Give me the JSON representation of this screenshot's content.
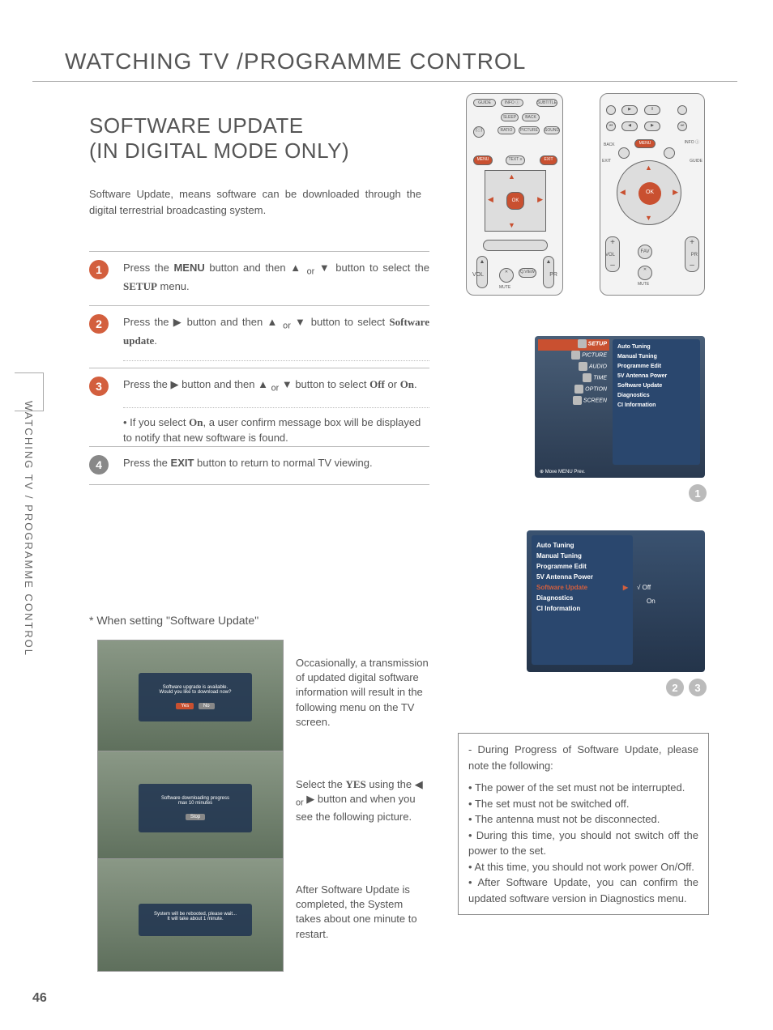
{
  "page": {
    "title": "WATCHING TV /PROGRAMME CONTROL",
    "number": "46",
    "side_label": "WATCHING TV / PROGRAMME CONTROL"
  },
  "section": {
    "title_line1": "SOFTWARE UPDATE",
    "title_line2": "(IN DIGITAL MODE ONLY)",
    "description": "Software Update, means software can be downloaded through the digital terrestrial broadcasting system."
  },
  "steps": [
    {
      "n": "1",
      "text": "Press the <b>MENU</b> button and then ▲ <sub>or</sub> ▼ button to select the <b class='serif'>SETUP</b> menu."
    },
    {
      "n": "2",
      "text": "Press the ▶ button and then ▲ <sub>or</sub> ▼ button to select <b class='serif'>Software update</b>."
    },
    {
      "n": "3",
      "text": "Press the ▶ button and then ▲ <sub>or</sub> ▼ button to select <b class='serif'>Off</b> or <b class='serif'>On</b>.",
      "sub": "• If you select <b class='serif'>On</b>, a user confirm message box will be displayed to notify that new software is found."
    },
    {
      "n": "4",
      "text": "Press the <b>EXIT</b> button to return to normal TV viewing."
    }
  ],
  "remote1_buttons": [
    "GUIDE",
    "INFO ⓘ",
    "SUBTITLE",
    "SLEEP",
    "BACK",
    "TV/RADIO",
    "(ⓘ)",
    "RATIO",
    "PICTURE",
    "SOUND",
    "MENU",
    "TEXT ≡",
    "EXIT",
    "OK",
    "VOL",
    "✕",
    "Q.VIEW",
    "PR",
    "MUTE"
  ],
  "remote2_buttons": [
    "●",
    "▶",
    "‖",
    "●",
    "⏮",
    "◀",
    "▶",
    "⏭",
    "BACK",
    "MENU",
    "INFO ⓘ",
    "EXIT",
    "GUIDE",
    "OK",
    "+",
    "FAV",
    "+",
    "VOL",
    "PR",
    "–",
    "✕",
    "–",
    "MUTE"
  ],
  "osd1": {
    "tabs": [
      "SETUP",
      "PICTURE",
      "AUDIO",
      "TIME",
      "OPTION",
      "SCREEN"
    ],
    "selected": 0,
    "items": [
      "Auto Tuning",
      "Manual Tuning",
      "Programme Edit",
      "5V Antenna Power",
      "Software Update",
      "Diagnostics",
      "CI Information"
    ],
    "footer": "⊕ Move  MENU Prev.",
    "badge": "1"
  },
  "osd2": {
    "items": [
      "Auto Tuning",
      "Manual Tuning",
      "Programme Edit",
      "5V Antenna Power",
      "Software Update",
      "Diagnostics",
      "CI Information"
    ],
    "highlight_index": 4,
    "right": [
      "√ Off",
      "On"
    ],
    "badges": [
      "2",
      "3"
    ]
  },
  "software_update_section": {
    "heading": "* When setting \"Software Update\"",
    "screenshots": [
      {
        "dialog": "Software upgrade is available.\\nWould you like to download now?",
        "buttons": [
          "Yes",
          "No"
        ],
        "desc": "Occasionally, a transmission of updated digital software information will result in the following menu on the TV screen."
      },
      {
        "dialog": "Software downloading progress\\nmax 10 minutes",
        "buttons": [
          "Stop"
        ],
        "desc": "Select the <b class='serif'>YES</b> using the ◀ <sub>or</sub> ▶ button and when you see the following picture."
      },
      {
        "dialog": "System will be rebooted, please wait...\\nIt will take about 1 minute.",
        "buttons": [],
        "desc": "After Software Update is completed, the System takes about one minute to restart."
      }
    ]
  },
  "progress_notes": {
    "heading": "- During Progress of Software Update, please note the following:",
    "bullets": [
      "The power of the set must not be interrupted.",
      "The set must not be switched off.",
      "The antenna must not be disconnected.",
      "During this time, you should not switch off the power to the set.",
      "At this time, you should not work power On/Off.",
      "After Software Update, you can confirm the updated software version in Diagnostics menu."
    ]
  }
}
